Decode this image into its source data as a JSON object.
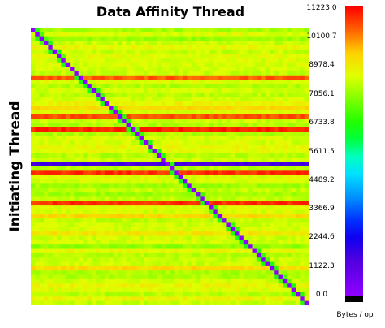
{
  "chart_data": {
    "type": "heatmap",
    "title": "Data Affinity Thread",
    "xlabel": "",
    "ylabel": "Initiating Thread",
    "colorbar_label": "Bytes / op",
    "colorbar_ticks": [
      "11223.0",
      "10100.7",
      "8978.4",
      "7856.1",
      "6733.8",
      "5611.5",
      "4489.2",
      "3366.9",
      "2244.6",
      "1122.3",
      "0.0"
    ],
    "value_range": [
      0.0,
      11223.0
    ],
    "grid_size": 64,
    "diagonal_value": 0.0,
    "background_value": 8400,
    "row_values": [
      {
        "row": 11,
        "value": 10400
      },
      {
        "row": 18,
        "value": 9300
      },
      {
        "row": 20,
        "value": 10500
      },
      {
        "row": 23,
        "value": 10900
      },
      {
        "row": 31,
        "value": 1000
      },
      {
        "row": 33,
        "value": 10800
      },
      {
        "row": 40,
        "value": 10800
      },
      {
        "row": 43,
        "value": 9300
      },
      {
        "row": 47,
        "value": 9100
      },
      {
        "row": 50,
        "value": 7900
      },
      {
        "row": 55,
        "value": 9300
      }
    ],
    "colorscale": [
      "#9000ff",
      "#5000e0",
      "#1000f0",
      "#0030ff",
      "#0090ff",
      "#00e0ff",
      "#00ffc0",
      "#00ff40",
      "#20ff00",
      "#80ff00",
      "#e0ff00",
      "#ffd000",
      "#ff6000",
      "#ff0000"
    ]
  }
}
